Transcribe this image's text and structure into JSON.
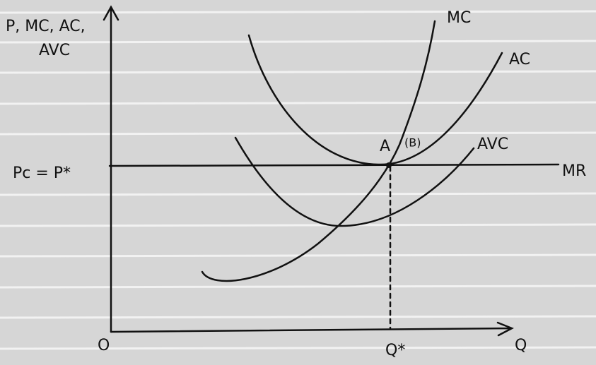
{
  "axes": {
    "y_label": [
      "P, MC, AC,",
      "AVC"
    ],
    "x_label": "Q",
    "origin": "O"
  },
  "curves": {
    "mc": "MC",
    "ac": "AC",
    "avc": "AVC",
    "mr": "MR"
  },
  "levels": {
    "price": "Pc = P*",
    "quantity": "Q*"
  },
  "points": {
    "a": "A",
    "b": "(B)"
  }
}
